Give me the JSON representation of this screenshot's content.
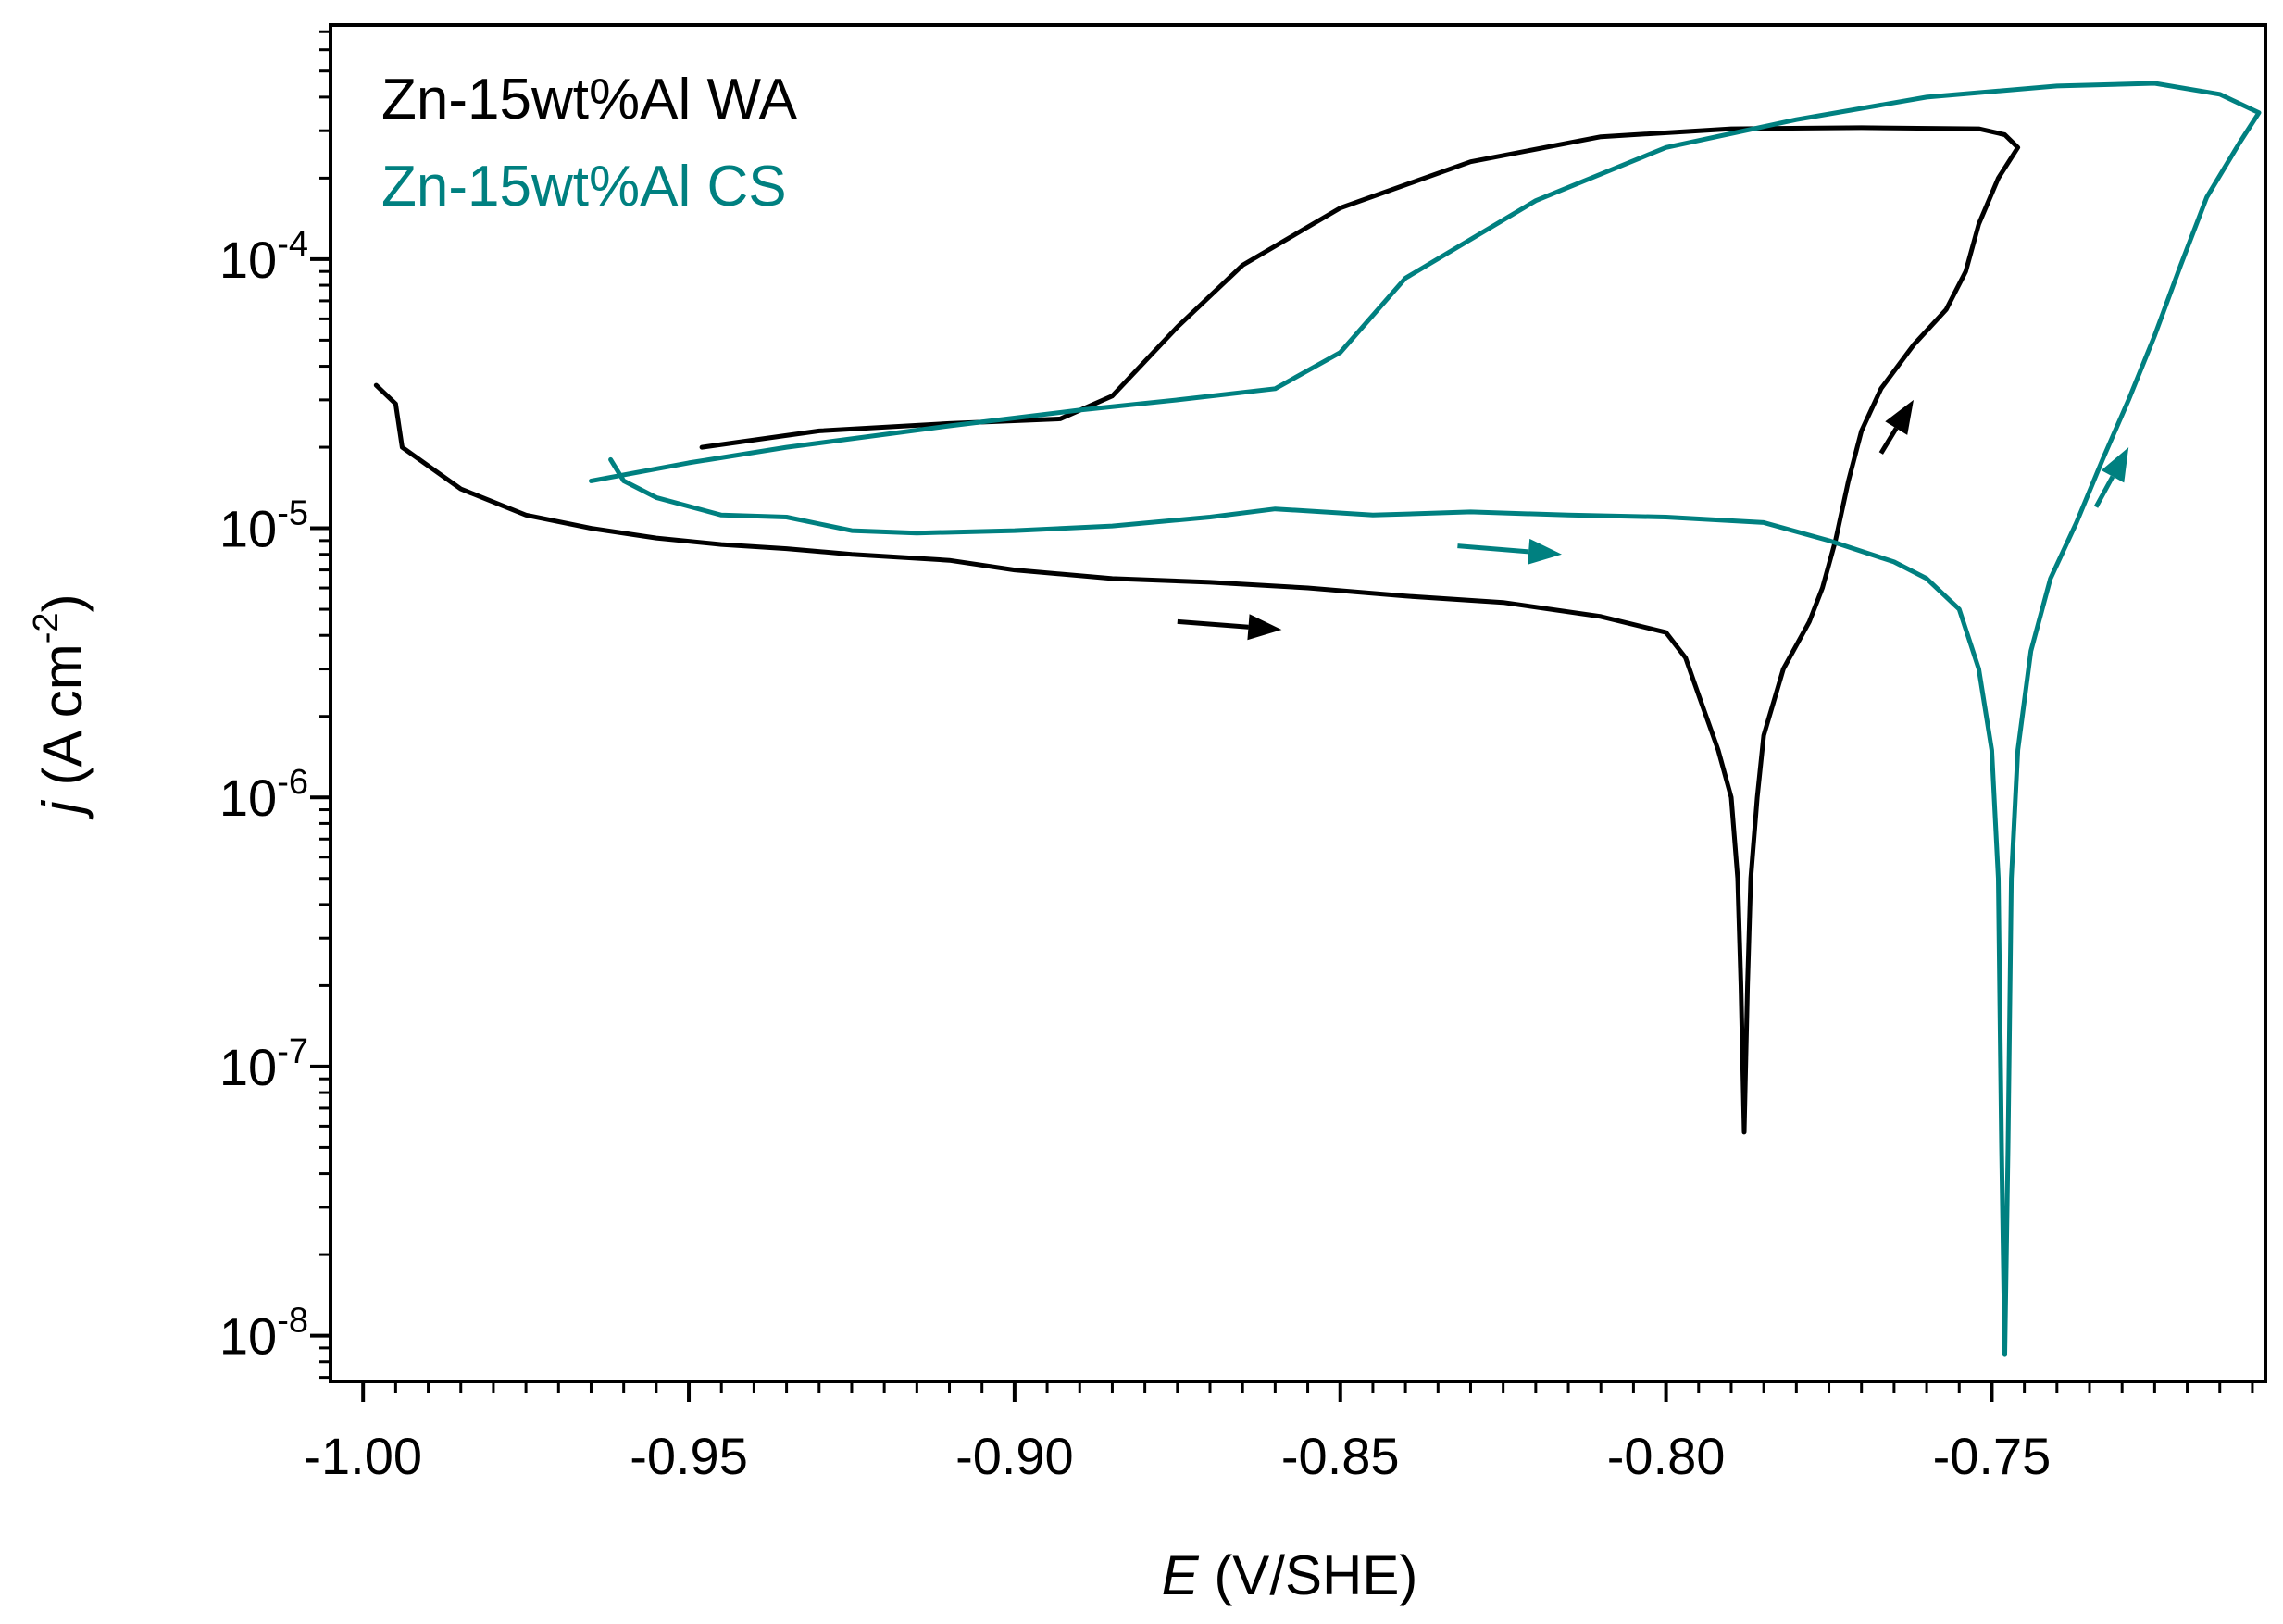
{
  "chart_data": {
    "type": "line",
    "title": "",
    "xlabel_var": "E",
    "xlabel_unit": " (V/SHE)",
    "ylabel_var": "j",
    "ylabel_unit_open": " (A cm",
    "ylabel_unit_exp": "-2",
    "ylabel_unit_close": ")",
    "xlim": [
      -1.005,
      -0.708
    ],
    "ylim_log10": [
      -8.17,
      -3.13
    ],
    "x_ticks": [
      -1.0,
      -0.95,
      -0.9,
      -0.85,
      -0.8,
      -0.75
    ],
    "x_tick_labels": [
      "-1.00",
      "-0.95",
      "-0.90",
      "-0.85",
      "-0.80",
      "-0.75"
    ],
    "y_ticks_log10": [
      -8,
      -7,
      -6,
      -5,
      -4
    ],
    "y_tick_labels": [
      {
        "base": "10",
        "exp": "-8"
      },
      {
        "base": "10",
        "exp": "-7"
      },
      {
        "base": "10",
        "exp": "-6"
      },
      {
        "base": "10",
        "exp": "-5"
      },
      {
        "base": "10",
        "exp": "-4"
      }
    ],
    "legend_position": "top-left",
    "series": [
      {
        "name": "Zn-15wt%Al WA",
        "color": "#000000",
        "points": [
          [
            -0.998,
            3.4e-05
          ],
          [
            -0.995,
            2.9e-05
          ],
          [
            -0.994,
            2e-05
          ],
          [
            -0.985,
            1.4e-05
          ],
          [
            -0.975,
            1.12e-05
          ],
          [
            -0.965,
            1e-05
          ],
          [
            -0.955,
            9.2e-06
          ],
          [
            -0.945,
            8.7e-06
          ],
          [
            -0.935,
            8.4e-06
          ],
          [
            -0.925,
            8e-06
          ],
          [
            -0.91,
            7.6e-06
          ],
          [
            -0.9,
            7e-06
          ],
          [
            -0.885,
            6.5e-06
          ],
          [
            -0.87,
            6.3e-06
          ],
          [
            -0.855,
            6e-06
          ],
          [
            -0.84,
            5.6e-06
          ],
          [
            -0.825,
            5.3e-06
          ],
          [
            -0.81,
            4.7e-06
          ],
          [
            -0.8,
            4.1e-06
          ],
          [
            -0.797,
            3.3e-06
          ],
          [
            -0.795,
            2.4e-06
          ],
          [
            -0.792,
            1.5e-06
          ],
          [
            -0.79,
            1e-06
          ],
          [
            -0.789,
            5e-07
          ],
          [
            -0.7885,
            2e-07
          ],
          [
            -0.788,
            5.7e-08
          ],
          [
            -0.7875,
            2e-07
          ],
          [
            -0.787,
            5e-07
          ],
          [
            -0.786,
            1e-06
          ],
          [
            -0.785,
            1.7e-06
          ],
          [
            -0.782,
            3e-06
          ],
          [
            -0.778,
            4.5e-06
          ],
          [
            -0.776,
            6e-06
          ],
          [
            -0.774,
            9e-06
          ],
          [
            -0.772,
            1.5e-05
          ],
          [
            -0.77,
            2.3e-05
          ],
          [
            -0.767,
            3.3e-05
          ],
          [
            -0.762,
            4.8e-05
          ],
          [
            -0.757,
            6.5e-05
          ],
          [
            -0.754,
            9e-05
          ],
          [
            -0.752,
            0.000135
          ],
          [
            -0.749,
            0.0002
          ],
          [
            -0.746,
            0.00026
          ],
          [
            -0.748,
            0.00029
          ],
          [
            -0.752,
            0.000305
          ],
          [
            -0.77,
            0.000308
          ],
          [
            -0.79,
            0.000305
          ],
          [
            -0.81,
            0.000285
          ],
          [
            -0.83,
            0.00023
          ],
          [
            -0.85,
            0.000155
          ],
          [
            -0.865,
            9.5e-05
          ],
          [
            -0.875,
            5.6e-05
          ],
          [
            -0.885,
            3.1e-05
          ],
          [
            -0.893,
            2.55e-05
          ],
          [
            -0.91,
            2.45e-05
          ],
          [
            -0.93,
            2.3e-05
          ],
          [
            -0.948,
            2e-05
          ]
        ]
      },
      {
        "name": "Zn-15wt%Al CS",
        "color": "#008080",
        "points": [
          [
            -0.962,
            1.8e-05
          ],
          [
            -0.96,
            1.5e-05
          ],
          [
            -0.955,
            1.3e-05
          ],
          [
            -0.945,
            1.12e-05
          ],
          [
            -0.935,
            1.1e-05
          ],
          [
            -0.925,
            9.8e-06
          ],
          [
            -0.915,
            9.6e-06
          ],
          [
            -0.9,
            9.8e-06
          ],
          [
            -0.885,
            1.02e-05
          ],
          [
            -0.87,
            1.1e-05
          ],
          [
            -0.86,
            1.18e-05
          ],
          [
            -0.845,
            1.12e-05
          ],
          [
            -0.83,
            1.15e-05
          ],
          [
            -0.815,
            1.12e-05
          ],
          [
            -0.8,
            1.1e-05
          ],
          [
            -0.785,
            1.05e-05
          ],
          [
            -0.775,
            9e-06
          ],
          [
            -0.765,
            7.5e-06
          ],
          [
            -0.76,
            6.5e-06
          ],
          [
            -0.755,
            5e-06
          ],
          [
            -0.752,
            3e-06
          ],
          [
            -0.75,
            1.5e-06
          ],
          [
            -0.749,
            5e-07
          ],
          [
            -0.7485,
            5e-08
          ],
          [
            -0.748,
            8.5e-09
          ],
          [
            -0.7475,
            5e-08
          ],
          [
            -0.747,
            5e-07
          ],
          [
            -0.746,
            1.5e-06
          ],
          [
            -0.744,
            3.5e-06
          ],
          [
            -0.741,
            6.5e-06
          ],
          [
            -0.737,
            1.05e-05
          ],
          [
            -0.733,
            1.8e-05
          ],
          [
            -0.729,
            3e-05
          ],
          [
            -0.725,
            5.2e-05
          ],
          [
            -0.721,
            9.5e-05
          ],
          [
            -0.717,
            0.00017
          ],
          [
            -0.712,
            0.00027
          ],
          [
            -0.709,
            0.00035
          ],
          [
            -0.715,
            0.00041
          ],
          [
            -0.725,
            0.00045
          ],
          [
            -0.74,
            0.00044
          ],
          [
            -0.76,
            0.0004
          ],
          [
            -0.78,
            0.00033
          ],
          [
            -0.8,
            0.00026
          ],
          [
            -0.82,
            0.000165
          ],
          [
            -0.84,
            8.5e-05
          ],
          [
            -0.85,
            4.5e-05
          ],
          [
            -0.86,
            3.3e-05
          ],
          [
            -0.875,
            3e-05
          ],
          [
            -0.89,
            2.75e-05
          ],
          [
            -0.91,
            2.4e-05
          ],
          [
            -0.935,
            2e-05
          ],
          [
            -0.95,
            1.75e-05
          ],
          [
            -0.965,
            1.5e-05
          ]
        ]
      }
    ],
    "arrows": [
      {
        "series": 0,
        "from": [
          -0.875,
          4.5e-06
        ],
        "to": [
          -0.859,
          4.2e-06
        ]
      },
      {
        "series": 0,
        "from": [
          -0.767,
          1.9e-05
        ],
        "to": [
          -0.762,
          3e-05
        ]
      },
      {
        "series": 1,
        "from": [
          -0.832,
          8.6e-06
        ],
        "to": [
          -0.816,
          8e-06
        ]
      },
      {
        "series": 1,
        "from": [
          -0.734,
          1.2e-05
        ],
        "to": [
          -0.729,
          2e-05
        ]
      }
    ]
  }
}
